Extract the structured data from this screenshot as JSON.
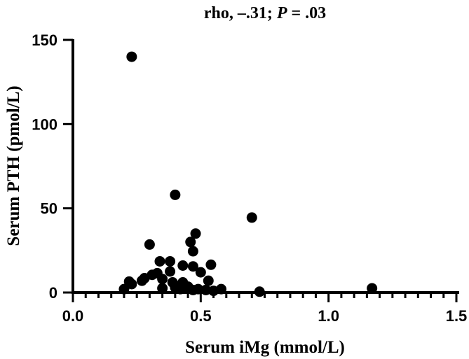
{
  "chart_data": {
    "type": "scatter",
    "title_prefix": "rho, –.31; ",
    "title_italic": "P",
    "title_suffix": " = .03",
    "xlabel": "Serum iMg (mmol/L)",
    "ylabel": "Serum PTH (pmol/L)",
    "xlim": [
      0.0,
      1.5
    ],
    "ylim": [
      0,
      150
    ],
    "x_ticks": [
      0.0,
      0.5,
      1.0,
      1.5
    ],
    "x_tick_labels": [
      "0.0",
      "0.5",
      "1.0",
      "1.5"
    ],
    "x_minor_step": 0.05,
    "y_ticks": [
      0,
      50,
      100,
      150
    ],
    "y_tick_labels": [
      "0",
      "50",
      "100",
      "150"
    ],
    "grid": false,
    "marker_color": "#000000",
    "series": [
      {
        "points": [
          [
            0.23,
            140
          ],
          [
            0.4,
            58
          ],
          [
            0.7,
            44.5
          ],
          [
            0.48,
            35
          ],
          [
            0.3,
            28.5
          ],
          [
            0.46,
            30
          ],
          [
            0.47,
            24.5
          ],
          [
            0.34,
            18.5
          ],
          [
            0.38,
            18.5
          ],
          [
            0.43,
            16
          ],
          [
            0.47,
            15.5
          ],
          [
            0.54,
            16.5
          ],
          [
            0.38,
            12.5
          ],
          [
            0.33,
            11.5
          ],
          [
            0.31,
            10.5
          ],
          [
            0.5,
            12
          ],
          [
            0.35,
            8
          ],
          [
            0.28,
            8.5
          ],
          [
            0.27,
            7
          ],
          [
            0.22,
            6.5
          ],
          [
            0.23,
            5
          ],
          [
            0.39,
            6
          ],
          [
            0.43,
            6
          ],
          [
            0.53,
            7
          ],
          [
            0.2,
            2
          ],
          [
            0.35,
            2.5
          ],
          [
            0.4,
            3
          ],
          [
            0.42,
            2
          ],
          [
            0.45,
            3.5
          ],
          [
            0.47,
            1.5
          ],
          [
            0.49,
            2
          ],
          [
            0.52,
            1.5
          ],
          [
            0.55,
            1
          ],
          [
            0.58,
            2
          ],
          [
            0.73,
            0.5
          ],
          [
            1.17,
            2.5
          ]
        ]
      }
    ]
  }
}
